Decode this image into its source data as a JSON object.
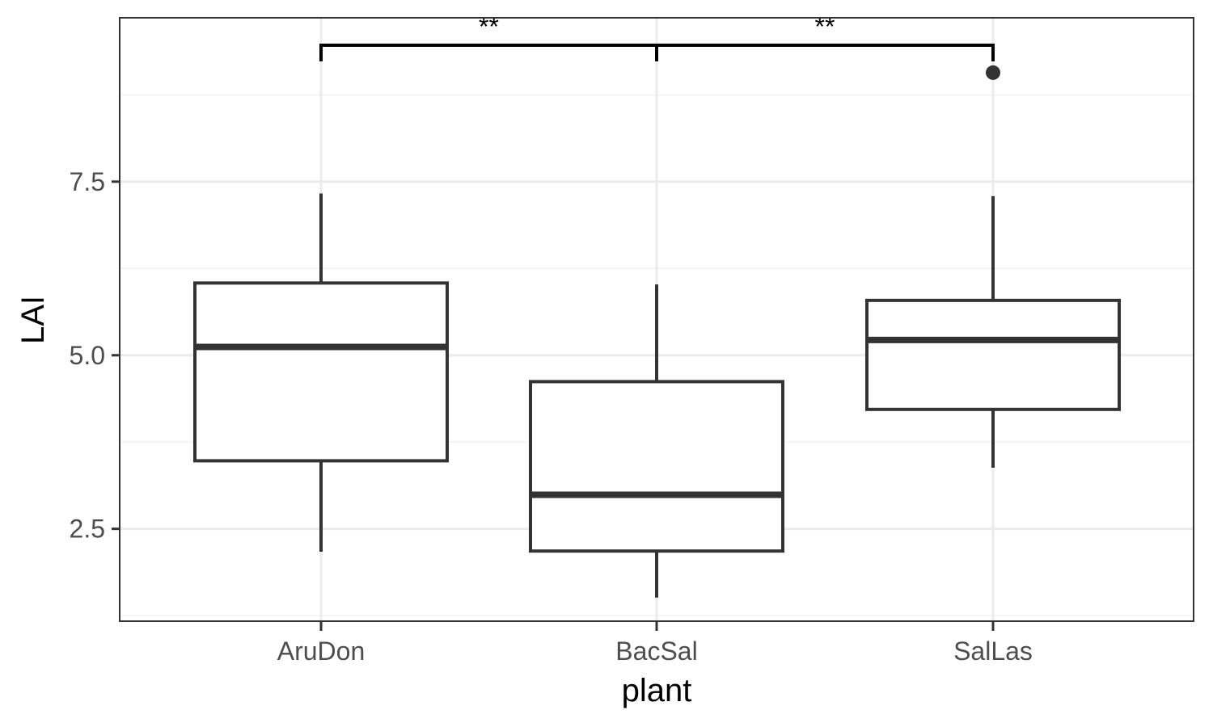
{
  "chart_data": {
    "type": "box",
    "xlabel": "plant",
    "ylabel": "LAI",
    "categories": [
      "AruDon",
      "BacSal",
      "SalLas"
    ],
    "ylim": [
      1.17,
      9.86
    ],
    "yticks": [
      2.5,
      5.0,
      7.5
    ],
    "ytick_labels": [
      "2.5",
      "5.0",
      "7.5"
    ],
    "y_minor_ticks": [
      1.25,
      3.75,
      6.25,
      8.75
    ],
    "grid": true,
    "boxes": [
      {
        "category": "AruDon",
        "whisker_low": 2.17,
        "q1": 3.48,
        "median": 5.12,
        "q3": 6.04,
        "whisker_high": 7.33,
        "outliers": []
      },
      {
        "category": "BacSal",
        "whisker_low": 1.51,
        "q1": 2.18,
        "median": 2.99,
        "q3": 4.62,
        "whisker_high": 6.02,
        "outliers": []
      },
      {
        "category": "SalLas",
        "whisker_low": 3.38,
        "q1": 4.22,
        "median": 5.22,
        "q3": 5.79,
        "whisker_high": 7.29,
        "outliers": [
          9.07
        ]
      }
    ],
    "significance": [
      {
        "from": "AruDon",
        "to": "BacSal",
        "label": "**"
      },
      {
        "from": "BacSal",
        "to": "SalLas",
        "label": "**"
      }
    ],
    "colors": {
      "box_line": "#333333",
      "grid_major": "#ebebeb",
      "grid_minor": "#f4f4f4",
      "panel_border": "#333333",
      "bracket": "#000000"
    }
  }
}
